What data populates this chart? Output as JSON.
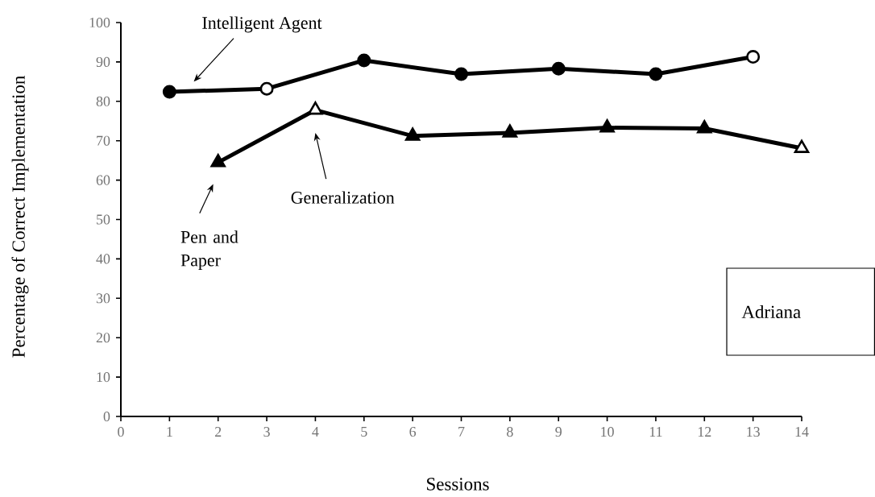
{
  "chart_data": {
    "type": "line",
    "xlabel": "Sessions",
    "ylabel": "Percentage of Correct Implementation",
    "series": [
      {
        "x": [
          1,
          3,
          5,
          7,
          9,
          11,
          13
        ],
        "values": [
          82.4,
          83.2,
          90.4,
          86.9,
          88.3,
          86.9,
          91.3
        ],
        "color": "#000000",
        "marker": "circle",
        "colors": [
          "#000000",
          "#ffffff",
          "#000000",
          "#000000",
          "#000000",
          "#000000",
          "#ffffff"
        ]
      },
      {
        "x": [
          2,
          4,
          6,
          8,
          10,
          12,
          14
        ],
        "values": [
          64.5,
          77.8,
          71.2,
          72.0,
          73.3,
          73.1,
          68.1
        ],
        "color": "#000000",
        "marker": "triangle",
        "colors": [
          "#000000",
          "#ffffff",
          "#000000",
          "#000000",
          "#000000",
          "#000000",
          "#ffffff"
        ]
      }
    ],
    "xlim": [
      0,
      14
    ],
    "xticks": [
      0,
      1,
      2,
      3,
      4,
      5,
      6,
      7,
      8,
      9,
      10,
      11,
      12,
      13,
      14
    ],
    "ylim": [
      0,
      100
    ],
    "yticks": [
      0,
      10,
      20,
      30,
      40,
      50,
      60,
      70,
      80,
      90,
      100
    ],
    "grid": false,
    "line_style": "solid",
    "annotations": [
      "Intelligent Agent",
      "Generalization",
      "Pen and Paper",
      "Adriana"
    ]
  }
}
